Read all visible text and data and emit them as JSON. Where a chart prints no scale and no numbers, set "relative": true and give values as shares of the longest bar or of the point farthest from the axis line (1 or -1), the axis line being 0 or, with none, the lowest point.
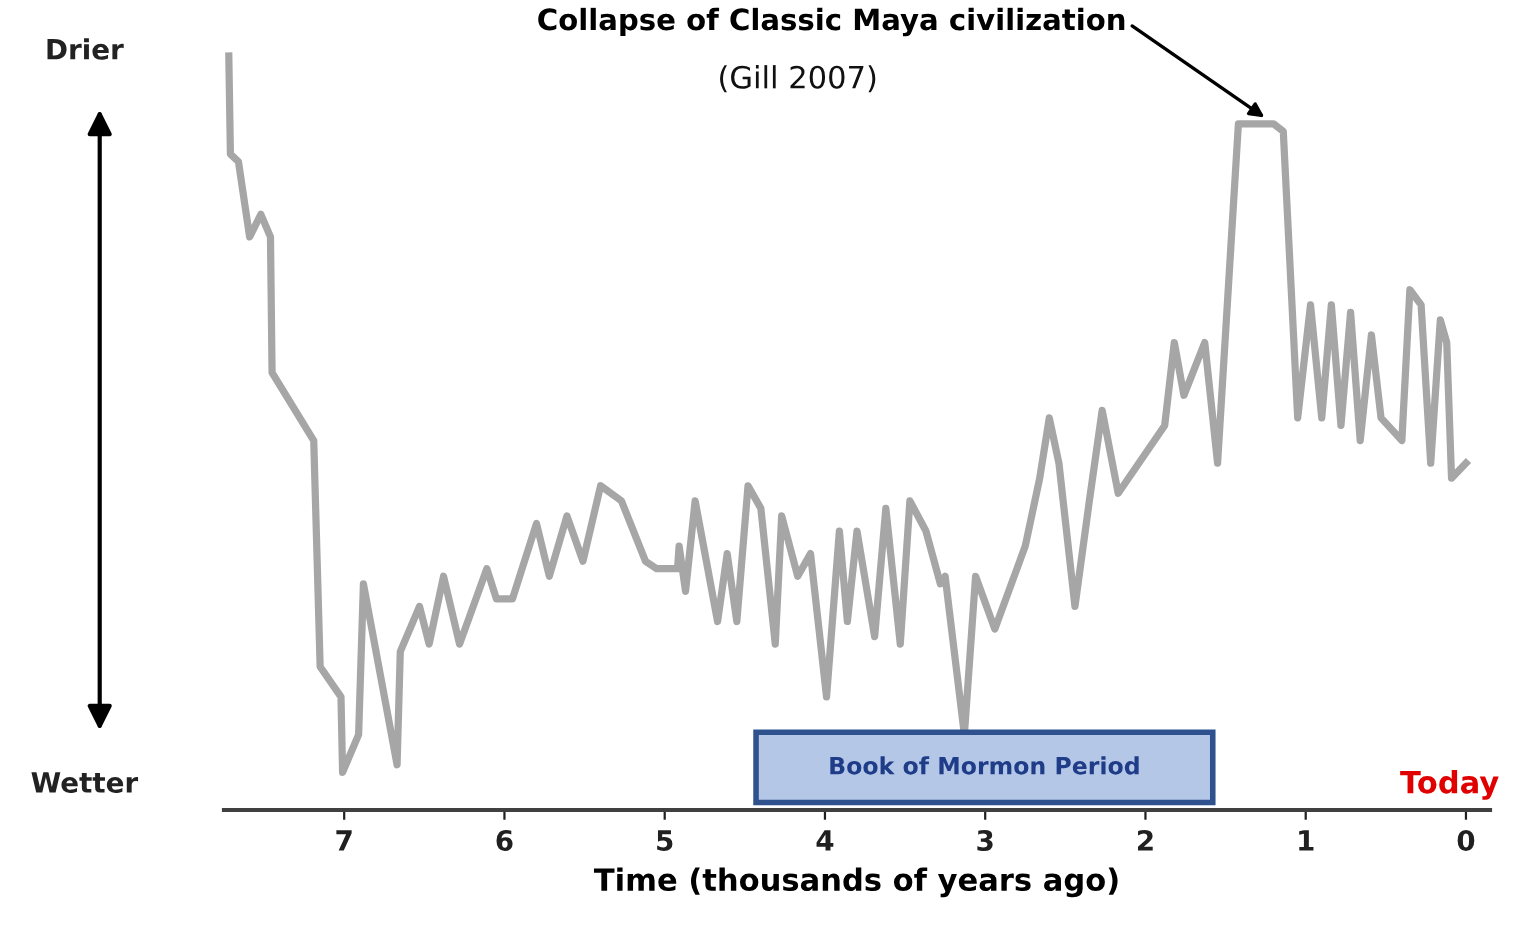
{
  "chart_data": {
    "type": "line",
    "relative": true,
    "xlabel": "Time (thousands of years ago)",
    "x": [
      7.72,
      7.71,
      7.66,
      7.59,
      7.52,
      7.46,
      7.45,
      7.19,
      7.15,
      7.02,
      7.01,
      6.91,
      6.88,
      6.67,
      6.65,
      6.53,
      6.47,
      6.38,
      6.28,
      6.11,
      6.05,
      5.95,
      5.8,
      5.72,
      5.61,
      5.51,
      5.4,
      5.27,
      5.12,
      5.05,
      4.92,
      4.91,
      4.87,
      4.81,
      4.67,
      4.61,
      4.55,
      4.48,
      4.4,
      4.31,
      4.27,
      4.17,
      4.09,
      3.99,
      3.91,
      3.86,
      3.8,
      3.69,
      3.62,
      3.53,
      3.47,
      3.37,
      3.28,
      3.25,
      3.13,
      3.06,
      2.94,
      2.75,
      2.66,
      2.6,
      2.54,
      2.44,
      2.35,
      2.27,
      2.17,
      1.88,
      1.82,
      1.76,
      1.63,
      1.55,
      1.42,
      1.2,
      1.14,
      1.05,
      0.97,
      0.9,
      0.84,
      0.78,
      0.72,
      0.66,
      0.59,
      0.53,
      0.4,
      0.35,
      0.28,
      0.22,
      0.16,
      0.12,
      0.09,
      0.0
    ],
    "series": [
      {
        "color": "#a6a6a6",
        "values": [
          1.0,
          0.87,
          0.86,
          0.76,
          0.79,
          0.76,
          0.58,
          0.49,
          0.19,
          0.15,
          0.05,
          0.1,
          0.3,
          0.06,
          0.21,
          0.27,
          0.22,
          0.31,
          0.22,
          0.32,
          0.28,
          0.28,
          0.38,
          0.31,
          0.39,
          0.33,
          0.43,
          0.41,
          0.33,
          0.32,
          0.32,
          0.35,
          0.29,
          0.41,
          0.25,
          0.34,
          0.25,
          0.43,
          0.4,
          0.22,
          0.39,
          0.31,
          0.34,
          0.15,
          0.37,
          0.25,
          0.37,
          0.23,
          0.4,
          0.22,
          0.41,
          0.37,
          0.3,
          0.31,
          0.1,
          0.31,
          0.24,
          0.35,
          0.44,
          0.52,
          0.46,
          0.27,
          0.41,
          0.53,
          0.42,
          0.51,
          0.62,
          0.55,
          0.62,
          0.46,
          0.91,
          0.91,
          0.9,
          0.52,
          0.67,
          0.52,
          0.67,
          0.51,
          0.66,
          0.49,
          0.63,
          0.52,
          0.49,
          0.69,
          0.67,
          0.46,
          0.65,
          0.62,
          0.44,
          0.46
        ]
      }
    ],
    "xlim": [
      7.75,
      -0.15
    ],
    "xticks": [
      7,
      6,
      5,
      4,
      3,
      2,
      1,
      0
    ],
    "bands": [
      {
        "axis": "x",
        "from": 4.43,
        "to": 1.58,
        "label": "Book of Mormon Period",
        "color": "#b4c7e7"
      }
    ],
    "annotations": [
      {
        "text": "Collapse of Classic Maya civilization",
        "x": 1.2,
        "y": 0.91
      },
      "(Gill 2007)",
      "Drier",
      "Wetter",
      "Today"
    ],
    "grid": false
  }
}
